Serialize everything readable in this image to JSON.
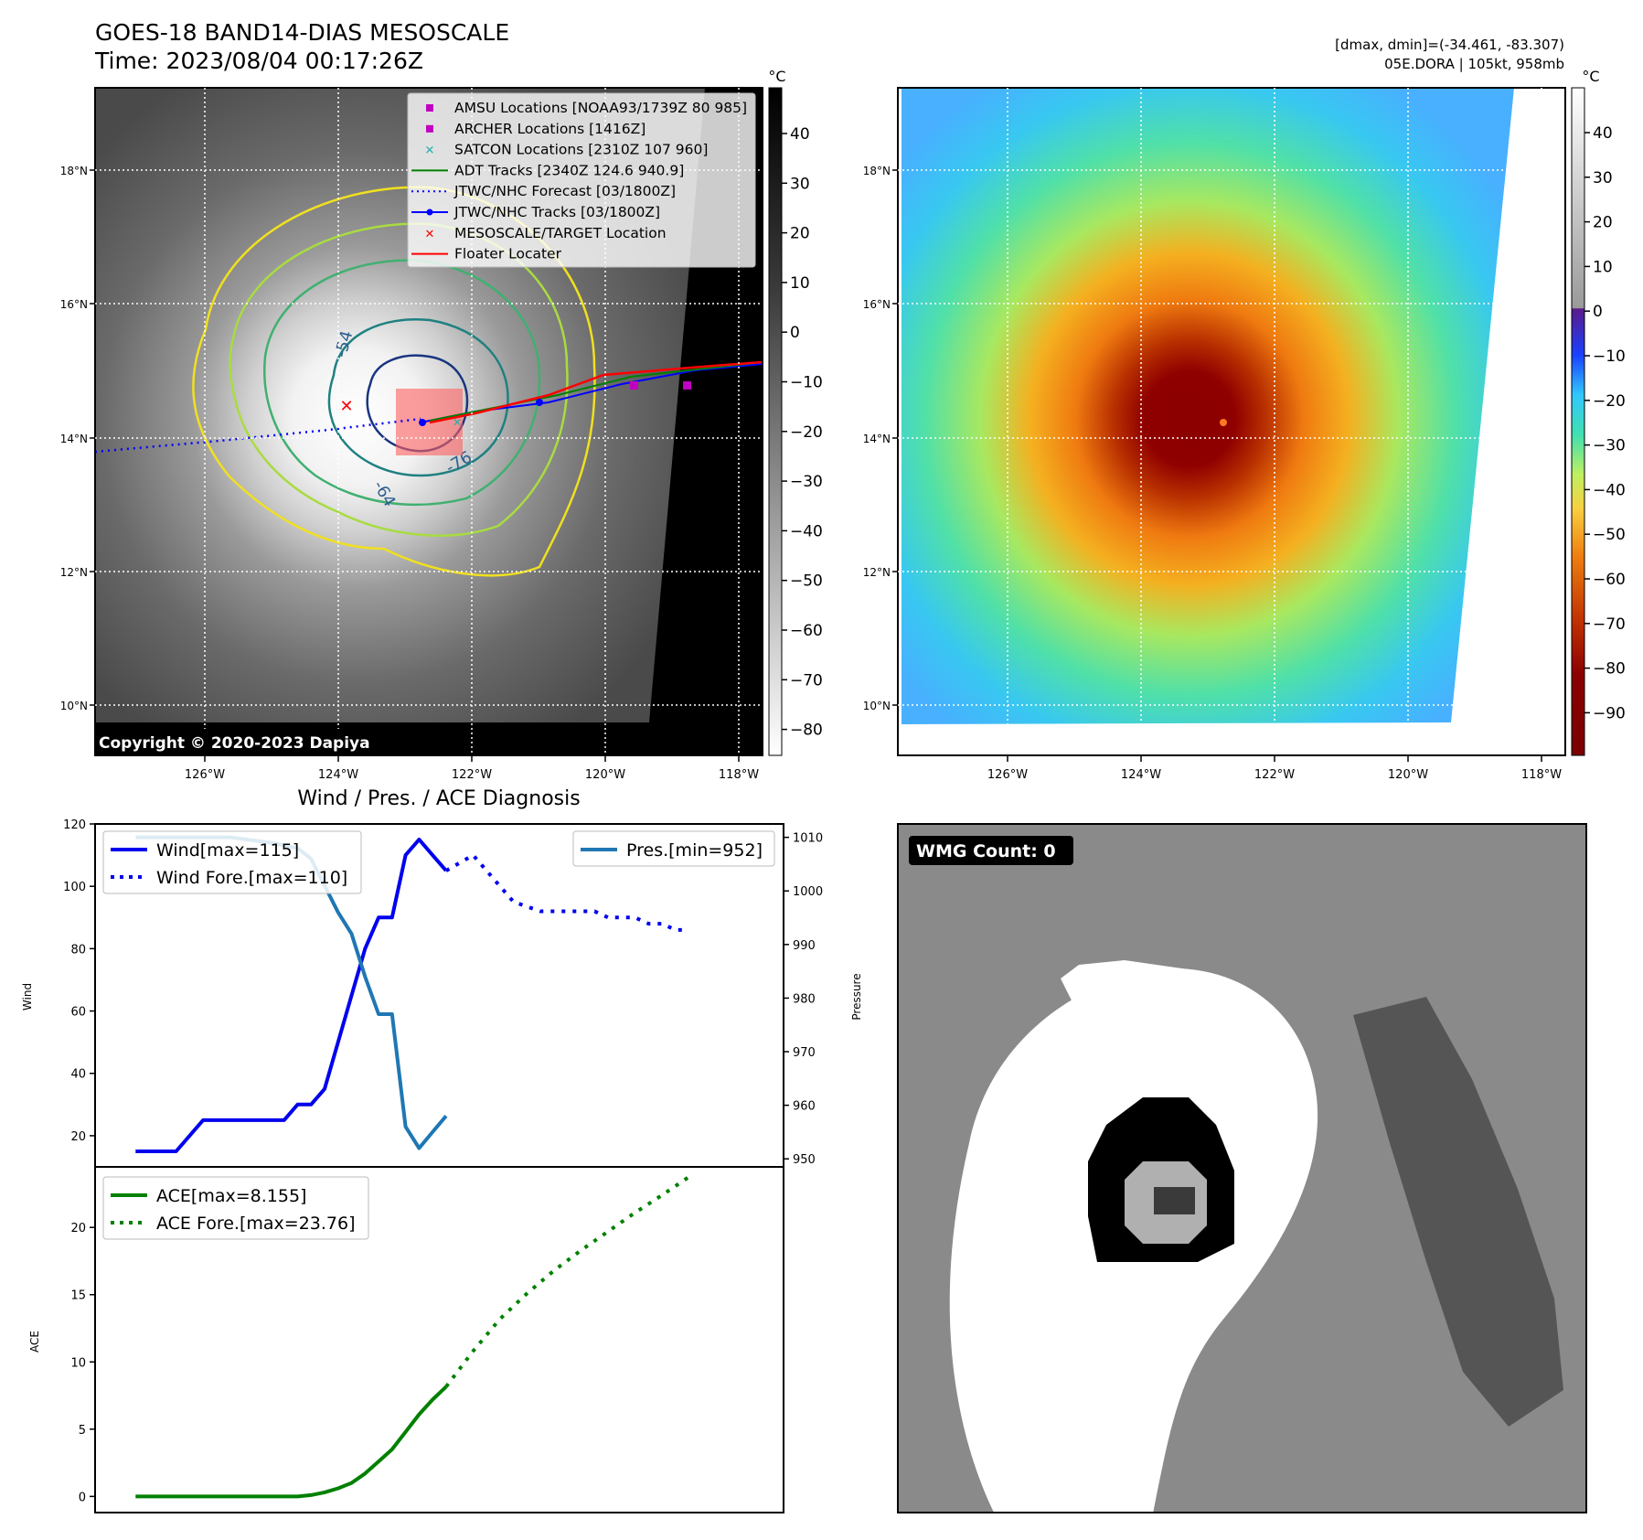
{
  "header": {
    "title_line1": "GOES-18 BAND14-DIAS MESOSCALE",
    "title_line2": "Time: 2023/08/04 00:17:26Z",
    "stats_line1": "[dmax, dmin]=(-34.461, -83.307)",
    "stats_line2": "05E.DORA | 105kt, 958mb"
  },
  "map": {
    "lon_ticks": [
      "126°W",
      "124°W",
      "122°W",
      "120°W",
      "118°W"
    ],
    "lat_ticks": [
      "18°N",
      "16°N",
      "14°N",
      "12°N",
      "10°N"
    ],
    "copyright": "Copyright © 2020-2023 Dapiya",
    "contour_labels": [
      "-54",
      "-64",
      "-76"
    ],
    "gray_cbar_unit": "°C",
    "gray_cbar_ticks": [
      "40",
      "30",
      "20",
      "10",
      "0",
      "−10",
      "−20",
      "−30",
      "−40",
      "−50",
      "−60",
      "−70",
      "−80"
    ],
    "color_cbar_unit": "°C",
    "color_cbar_ticks": [
      "40",
      "30",
      "20",
      "10",
      "0",
      "−10",
      "−20",
      "−30",
      "−40",
      "−50",
      "−60",
      "−70",
      "−80",
      "−90"
    ],
    "legend": [
      {
        "label": "AMSU Locations [NOAA93/1739Z 80 985]",
        "color": "#c000c0",
        "marker": "square"
      },
      {
        "label": "ARCHER Locations [1416Z]",
        "color": "#c000c0",
        "marker": "square"
      },
      {
        "label": "SATCON Locations [2310Z 107 960]",
        "color": "#20b0b0",
        "marker": "x"
      },
      {
        "label": "ADT Tracks [2340Z 124.6 940.9]",
        "color": "#008000",
        "marker": "line"
      },
      {
        "label": "JTWC/NHC Forecast [03/1800Z]",
        "color": "#0000ff",
        "marker": "dotted"
      },
      {
        "label": "JTWC/NHC Tracks [03/1800Z]",
        "color": "#0000ff",
        "marker": "line-dot"
      },
      {
        "label": "MESOSCALE/TARGET Location",
        "color": "#ff0000",
        "marker": "x"
      },
      {
        "label": "Floater Locater",
        "color": "#ff0000",
        "marker": "line"
      }
    ]
  },
  "wmg": {
    "label": "WMG Count: 0"
  },
  "chart_data": [
    {
      "type": "line",
      "title": "Wind / Pres. / ACE Diagnosis",
      "ylabel": "Wind",
      "y2label": "Pressure",
      "ylim": [
        10,
        120
      ],
      "y2lim": [
        948.5,
        1012.5
      ],
      "yticks": [
        20,
        40,
        60,
        80,
        100,
        120
      ],
      "y2ticks": [
        950,
        960,
        970,
        980,
        990,
        1000,
        1010
      ],
      "x": [
        0,
        1,
        2,
        3,
        4,
        5,
        6,
        7,
        8,
        9,
        10,
        11,
        12,
        13,
        14,
        15,
        16,
        17,
        18,
        19,
        20,
        21,
        22,
        23,
        24,
        25,
        26,
        27,
        28,
        29,
        30,
        31,
        32,
        33,
        34,
        35,
        36,
        37,
        38,
        39,
        40,
        41,
        42,
        43,
        44,
        45
      ],
      "series": [
        {
          "name": "Wind[max=115]",
          "style": "solid",
          "color": "#0000ee",
          "axis": "left",
          "x": [
            0,
            3,
            5,
            6,
            11,
            12,
            13,
            14,
            16,
            17,
            18,
            19,
            20,
            21,
            22,
            23
          ],
          "values": [
            15,
            15,
            25,
            25,
            25,
            30,
            30,
            35,
            65,
            80,
            90,
            90,
            110,
            115,
            110,
            105
          ]
        },
        {
          "name": "Wind Fore.[max=110]",
          "style": "dotted",
          "color": "#0000ee",
          "axis": "left",
          "x": [
            23,
            25,
            26,
            27,
            28,
            30,
            31,
            32,
            33,
            34,
            35,
            36,
            37,
            38,
            39,
            40,
            41
          ],
          "values": [
            105,
            110,
            105,
            100,
            95,
            92,
            92,
            92,
            92,
            92,
            90,
            90,
            90,
            88,
            88,
            86,
            86
          ]
        },
        {
          "name": "Pres.[min=952]",
          "style": "solid",
          "color": "#1f77b4",
          "axis": "right",
          "x": [
            0,
            7,
            10,
            12,
            13,
            15,
            16,
            17,
            18,
            19,
            20,
            21,
            22,
            23
          ],
          "values": [
            1010,
            1010,
            1009,
            1008,
            1006,
            996,
            992,
            984,
            977,
            977,
            956,
            952,
            955,
            958
          ]
        }
      ]
    },
    {
      "type": "line",
      "ylabel": "ACE",
      "ylim": [
        -1.2,
        24.5
      ],
      "yticks": [
        0,
        5,
        10,
        15,
        20
      ],
      "series": [
        {
          "name": "ACE[max=8.155]",
          "style": "solid",
          "color": "#008000",
          "x": [
            0,
            2,
            4,
            6,
            8,
            10,
            12,
            13,
            14,
            15,
            16,
            17,
            18,
            19,
            20,
            21,
            22,
            23
          ],
          "values": [
            0,
            0,
            0,
            0,
            0,
            0,
            0,
            0.1,
            0.3,
            0.6,
            1.0,
            1.7,
            2.6,
            3.5,
            4.8,
            6.1,
            7.2,
            8.155
          ]
        },
        {
          "name": "ACE Fore.[max=23.76]",
          "style": "dotted",
          "color": "#008000",
          "x": [
            23,
            25,
            27,
            29,
            31,
            33,
            35,
            37,
            39,
            41
          ],
          "values": [
            8.155,
            10.8,
            13.2,
            15.1,
            16.8,
            18.3,
            19.7,
            21.1,
            22.4,
            23.76
          ]
        }
      ]
    }
  ]
}
